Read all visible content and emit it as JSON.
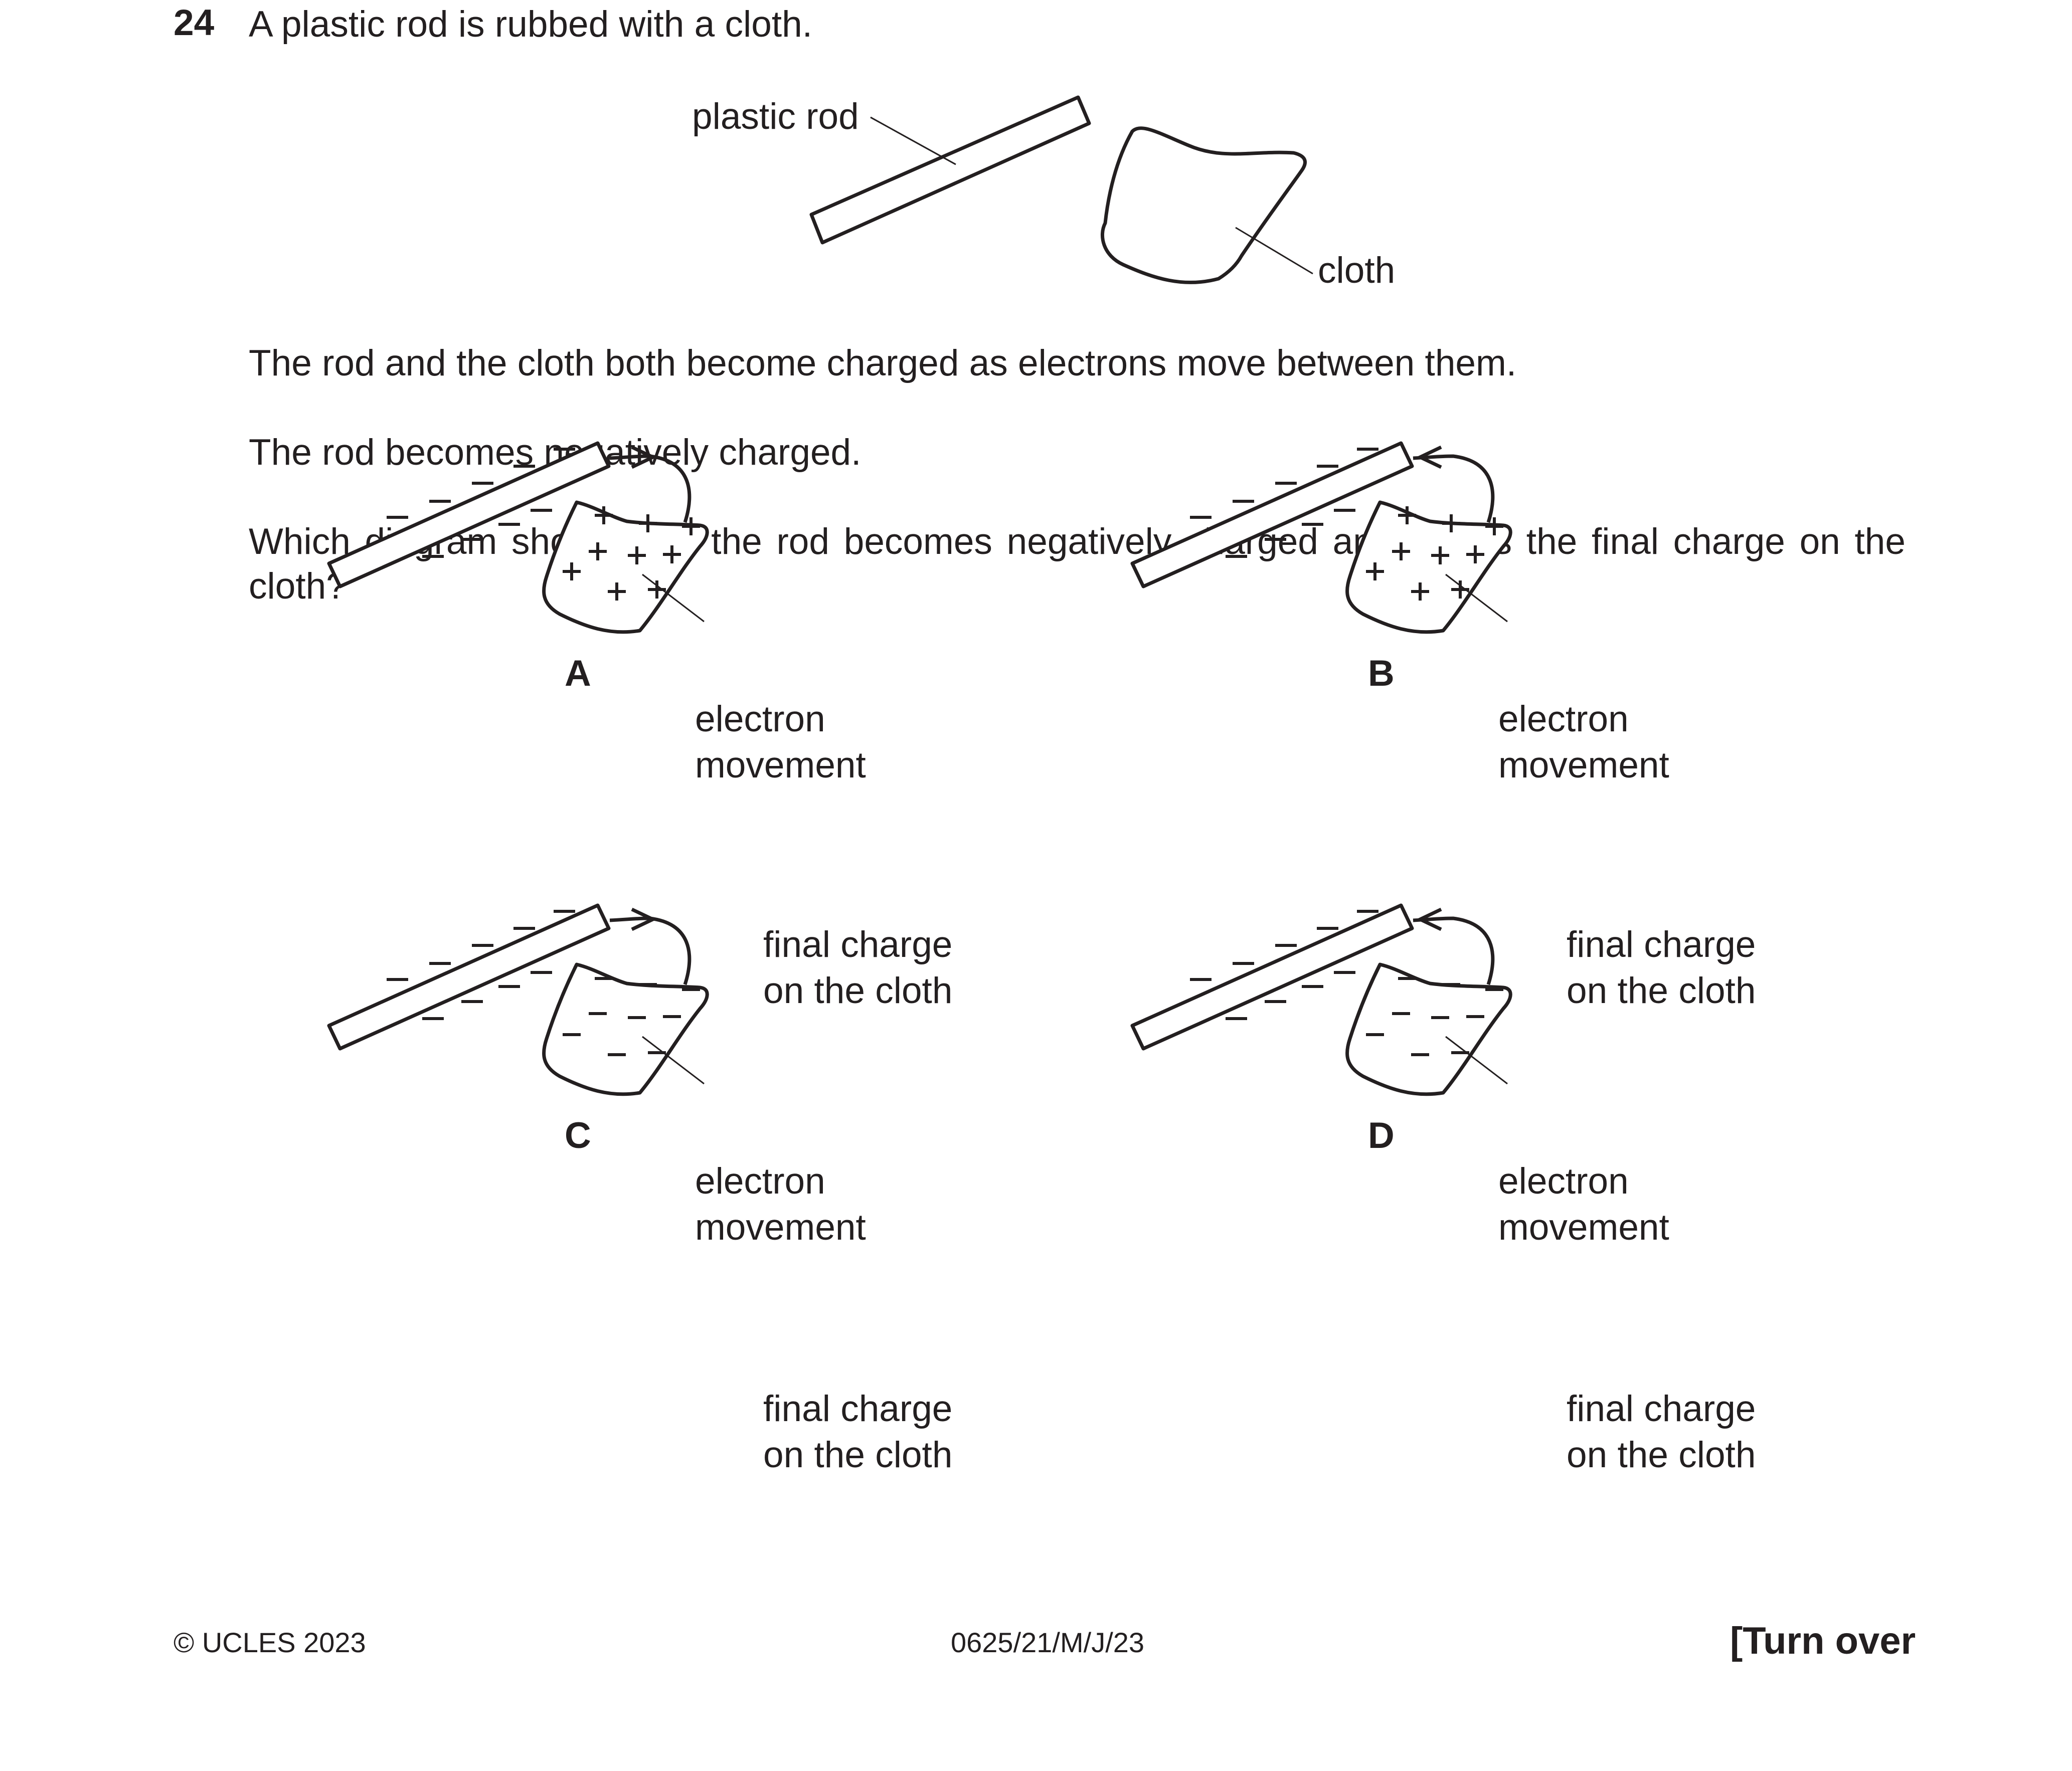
{
  "question": {
    "number": "24",
    "stem": "A plastic rod is rubbed with a cloth.",
    "diagram_labels": {
      "rod": "plastic rod",
      "cloth": "cloth"
    },
    "para1": "The rod and the cloth both become charged as electrons move between them.",
    "para2": "The rod becomes negatively charged.",
    "para3": "Which diagram shows how the rod becomes negatively charged and shows the final charge on the cloth?"
  },
  "options": [
    {
      "letter": "A",
      "arrow_label_1": "electron",
      "arrow_label_2": "movement",
      "cloth_label_1": "final charge",
      "cloth_label_2": "on the cloth",
      "arrow_direction": "rod-to-cloth",
      "cloth_charge": "+"
    },
    {
      "letter": "B",
      "arrow_label_1": "electron",
      "arrow_label_2": "movement",
      "cloth_label_1": "final charge",
      "cloth_label_2": "on the cloth",
      "arrow_direction": "cloth-to-rod",
      "cloth_charge": "+"
    },
    {
      "letter": "C",
      "arrow_label_1": "electron",
      "arrow_label_2": "movement",
      "cloth_label_1": "final charge",
      "cloth_label_2": "on the cloth",
      "arrow_direction": "rod-to-cloth",
      "cloth_charge": "−"
    },
    {
      "letter": "D",
      "arrow_label_1": "electron",
      "arrow_label_2": "movement",
      "cloth_label_1": "final charge",
      "cloth_label_2": "on the cloth",
      "arrow_direction": "cloth-to-rod",
      "cloth_charge": "−"
    }
  ],
  "footer": {
    "copyright": "© UCLES 2023",
    "code": "0625/21/M/J/23",
    "turn_over": "[Turn over"
  }
}
